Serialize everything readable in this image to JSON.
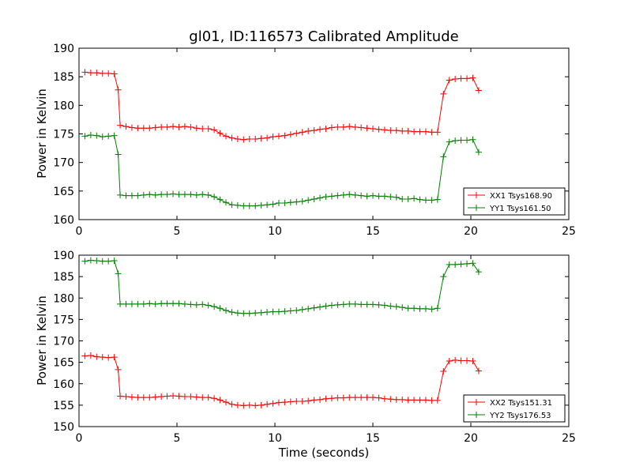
{
  "colors": {
    "xx": "#ff0000",
    "yy": "#008000",
    "frame": "#000000"
  },
  "chart_data": [
    {
      "type": "line",
      "title": "gl01, ID:116573 Calibrated Amplitude",
      "xlabel": "",
      "ylabel": "Power in Kelvin",
      "xlim": [
        0,
        25
      ],
      "ylim": [
        160,
        190
      ],
      "x_ticks": [
        "0",
        "5",
        "10",
        "15",
        "20",
        "25"
      ],
      "y_ticks": [
        "160",
        "165",
        "170",
        "175",
        "180",
        "185",
        "190"
      ],
      "legend_position": "lower-right",
      "grid": false,
      "x": [
        0.3,
        0.6,
        0.9,
        1.2,
        1.5,
        1.8,
        2.0,
        2.1,
        2.4,
        2.7,
        3.0,
        3.3,
        3.6,
        3.9,
        4.2,
        4.5,
        4.8,
        5.1,
        5.4,
        5.7,
        6.0,
        6.3,
        6.6,
        6.9,
        7.2,
        7.5,
        7.8,
        8.1,
        8.4,
        8.7,
        9.0,
        9.3,
        9.6,
        9.9,
        10.2,
        10.5,
        10.8,
        11.1,
        11.4,
        11.7,
        12.0,
        12.3,
        12.6,
        12.9,
        13.2,
        13.5,
        13.8,
        14.1,
        14.4,
        14.7,
        15.0,
        15.3,
        15.6,
        15.9,
        16.2,
        16.5,
        16.8,
        17.1,
        17.4,
        17.7,
        18.0,
        18.3,
        18.6,
        18.9,
        19.2,
        19.5,
        19.8,
        20.1,
        20.4
      ],
      "series": [
        {
          "name": "XX1 Tsys168.90",
          "color": "#ff0000",
          "values": [
            185.8,
            185.7,
            185.7,
            185.6,
            185.6,
            185.5,
            182.7,
            176.5,
            176.3,
            176.1,
            176.0,
            176.0,
            176.0,
            176.1,
            176.2,
            176.2,
            176.3,
            176.2,
            176.3,
            176.2,
            176.0,
            175.9,
            175.9,
            175.7,
            175.1,
            174.6,
            174.3,
            174.1,
            174.0,
            174.1,
            174.1,
            174.2,
            174.3,
            174.5,
            174.6,
            174.7,
            174.9,
            175.1,
            175.3,
            175.5,
            175.6,
            175.8,
            175.9,
            176.1,
            176.2,
            176.2,
            176.3,
            176.2,
            176.1,
            176.0,
            175.9,
            175.8,
            175.7,
            175.6,
            175.6,
            175.5,
            175.5,
            175.4,
            175.4,
            175.4,
            175.3,
            175.3,
            182.0,
            184.4,
            184.6,
            184.7,
            184.7,
            184.8,
            182.6
          ]
        },
        {
          "name": "YY1 Tsys161.50",
          "color": "#008000",
          "values": [
            174.6,
            174.8,
            174.7,
            174.5,
            174.6,
            174.7,
            171.4,
            164.3,
            164.2,
            164.2,
            164.2,
            164.3,
            164.4,
            164.3,
            164.4,
            164.4,
            164.5,
            164.4,
            164.4,
            164.4,
            164.3,
            164.4,
            164.3,
            164.0,
            163.5,
            163.0,
            162.6,
            162.5,
            162.4,
            162.4,
            162.4,
            162.5,
            162.6,
            162.7,
            162.9,
            162.9,
            163.0,
            163.1,
            163.2,
            163.4,
            163.6,
            163.8,
            164.0,
            164.1,
            164.2,
            164.3,
            164.4,
            164.3,
            164.2,
            164.1,
            164.2,
            164.1,
            164.1,
            164.0,
            163.9,
            163.6,
            163.6,
            163.7,
            163.5,
            163.4,
            163.4,
            163.5,
            171.0,
            173.6,
            173.8,
            173.9,
            173.9,
            174.0,
            171.8
          ]
        }
      ]
    },
    {
      "type": "line",
      "title": "",
      "xlabel": "Time (seconds)",
      "ylabel": "Power in Kelvin",
      "xlim": [
        0,
        25
      ],
      "ylim": [
        150,
        190
      ],
      "x_ticks": [
        "0",
        "5",
        "10",
        "15",
        "20",
        "25"
      ],
      "y_ticks": [
        "150",
        "155",
        "160",
        "165",
        "170",
        "175",
        "180",
        "185",
        "190"
      ],
      "legend_position": "lower-right",
      "grid": false,
      "x": [
        0.3,
        0.6,
        0.9,
        1.2,
        1.5,
        1.8,
        2.0,
        2.1,
        2.4,
        2.7,
        3.0,
        3.3,
        3.6,
        3.9,
        4.2,
        4.5,
        4.8,
        5.1,
        5.4,
        5.7,
        6.0,
        6.3,
        6.6,
        6.9,
        7.2,
        7.5,
        7.8,
        8.1,
        8.4,
        8.7,
        9.0,
        9.3,
        9.6,
        9.9,
        10.2,
        10.5,
        10.8,
        11.1,
        11.4,
        11.7,
        12.0,
        12.3,
        12.6,
        12.9,
        13.2,
        13.5,
        13.8,
        14.1,
        14.4,
        14.7,
        15.0,
        15.3,
        15.6,
        15.9,
        16.2,
        16.5,
        16.8,
        17.1,
        17.4,
        17.7,
        18.0,
        18.3,
        18.6,
        18.9,
        19.2,
        19.5,
        19.8,
        20.1,
        20.4
      ],
      "series": [
        {
          "name": "XX2 Tsys151.31",
          "color": "#ff0000",
          "values": [
            166.5,
            166.6,
            166.3,
            166.2,
            166.1,
            166.2,
            163.3,
            157.1,
            157.0,
            156.9,
            156.8,
            156.8,
            156.8,
            156.9,
            157.0,
            157.1,
            157.2,
            157.1,
            157.0,
            157.0,
            156.9,
            156.8,
            156.8,
            156.6,
            156.2,
            155.7,
            155.2,
            155.0,
            154.9,
            155.0,
            154.9,
            155.0,
            155.2,
            155.4,
            155.6,
            155.7,
            155.8,
            155.9,
            155.9,
            156.0,
            156.2,
            156.3,
            156.5,
            156.6,
            156.7,
            156.7,
            156.8,
            156.8,
            156.8,
            156.8,
            156.8,
            156.7,
            156.5,
            156.4,
            156.3,
            156.3,
            156.2,
            156.2,
            156.2,
            156.2,
            156.1,
            156.1,
            162.9,
            165.3,
            165.5,
            165.4,
            165.4,
            165.3,
            163.0
          ]
        },
        {
          "name": "YY2 Tsys176.53",
          "color": "#008000",
          "values": [
            188.6,
            188.8,
            188.7,
            188.6,
            188.6,
            188.7,
            185.7,
            178.6,
            178.6,
            178.6,
            178.6,
            178.6,
            178.7,
            178.6,
            178.7,
            178.7,
            178.7,
            178.7,
            178.6,
            178.5,
            178.4,
            178.5,
            178.3,
            178.0,
            177.6,
            177.1,
            176.7,
            176.5,
            176.4,
            176.4,
            176.5,
            176.6,
            176.7,
            176.8,
            176.8,
            176.9,
            177.0,
            177.1,
            177.3,
            177.5,
            177.7,
            177.9,
            178.1,
            178.3,
            178.4,
            178.5,
            178.6,
            178.6,
            178.5,
            178.5,
            178.5,
            178.4,
            178.3,
            178.1,
            178.0,
            177.8,
            177.6,
            177.6,
            177.5,
            177.5,
            177.4,
            177.6,
            185.0,
            187.8,
            187.8,
            187.9,
            188.0,
            188.1,
            186.1
          ]
        }
      ]
    }
  ]
}
